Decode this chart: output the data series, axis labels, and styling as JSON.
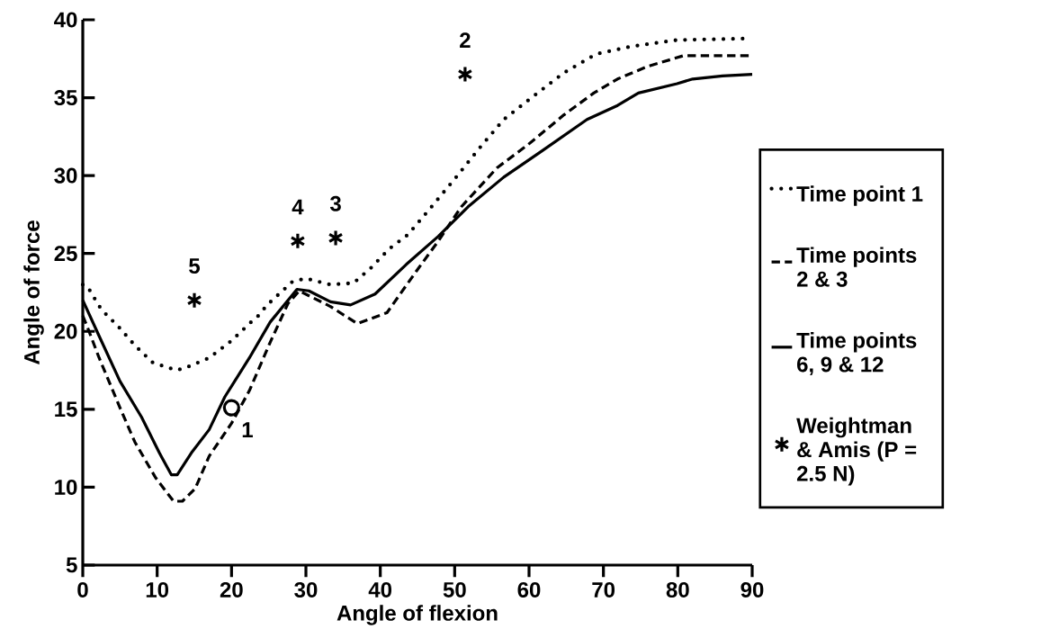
{
  "chart_data": {
    "type": "line",
    "xlabel": "Angle of flexion",
    "ylabel": "Angle of force",
    "xlim": [
      0,
      90
    ],
    "ylim": [
      5,
      40
    ],
    "xticks": [
      0,
      10,
      20,
      30,
      40,
      50,
      60,
      70,
      80,
      90
    ],
    "yticks": [
      5,
      10,
      15,
      20,
      25,
      30,
      35,
      40
    ],
    "legend": "right",
    "marker": "none",
    "series": [
      {
        "name": "Time point 1",
        "color": "#000000",
        "line_style": "dotted",
        "x": [
          0,
          0.6,
          1.6,
          2.5,
          4.8,
          7,
          9.4,
          12.6,
          14,
          17,
          20,
          22.4,
          23.6,
          24.8,
          28.2,
          30,
          33.3,
          36.4,
          38.8,
          41.2,
          43.7,
          46.9,
          50.2,
          53.4,
          56.6,
          60.6,
          64.7,
          69,
          73.9,
          79.9,
          90
        ],
        "values": [
          23.0,
          22.9,
          22.1,
          21.4,
          20.3,
          19.1,
          18.0,
          17.5,
          17.7,
          18.3,
          19.4,
          20.5,
          21.0,
          21.7,
          23.2,
          23.4,
          23.0,
          23.1,
          24.1,
          25.3,
          26.2,
          28.0,
          29.9,
          31.8,
          33.6,
          35.1,
          36.6,
          37.8,
          38.3,
          38.7,
          38.8
        ]
      },
      {
        "name": "Time points 2 & 3",
        "color": "#000000",
        "line_style": "dashed",
        "x": [
          0,
          0.6,
          2.2,
          5,
          7,
          9.8,
          12.2,
          13.4,
          15.1,
          17,
          20,
          22.4,
          25.2,
          27.6,
          29.1,
          33.3,
          36.9,
          40.9,
          44.9,
          47.8,
          50.9,
          55.7,
          59.9,
          64.7,
          68.7,
          71.9,
          75.9,
          80.8,
          90
        ],
        "values": [
          21.0,
          20.3,
          18.3,
          15.1,
          12.9,
          10.6,
          9.1,
          9.1,
          9.9,
          12.0,
          14.1,
          16.2,
          19.3,
          21.8,
          22.6,
          21.6,
          20.5,
          21.2,
          23.9,
          25.8,
          28.0,
          30.5,
          32.0,
          33.9,
          35.3,
          36.2,
          37.0,
          37.7,
          37.7
        ]
      },
      {
        "name": "Time points 6, 9 & 12",
        "color": "#000000",
        "line_style": "solid",
        "x": [
          0,
          2.2,
          5,
          7.9,
          10.3,
          11.9,
          12.7,
          14.6,
          17,
          19.1,
          22.4,
          25.2,
          28.8,
          30.4,
          33.3,
          36,
          39.3,
          43.5,
          47.8,
          51.8,
          56.6,
          61.8,
          67.8,
          71.9,
          74.7,
          79.9,
          82,
          86,
          90
        ],
        "values": [
          22.0,
          19.7,
          16.8,
          14.5,
          12.2,
          10.8,
          10.8,
          12.2,
          13.7,
          15.8,
          18.3,
          20.6,
          22.7,
          22.6,
          21.9,
          21.7,
          22.4,
          24.3,
          26.1,
          28.0,
          29.9,
          31.6,
          33.6,
          34.5,
          35.3,
          35.9,
          36.2,
          36.4,
          36.5
        ]
      },
      {
        "name": "Weightman & Amis (P = 2.5 N)",
        "type": "scatter",
        "marker": "cross",
        "color": "#000000",
        "x": [
          15,
          28.9,
          34,
          51.4
        ],
        "values": [
          22.0,
          25.8,
          26.0,
          36.5
        ]
      },
      {
        "type": "scatter",
        "marker": "circle",
        "color": "#000000",
        "x": [
          20
        ],
        "values": [
          15.1
        ]
      }
    ],
    "annotations": [
      {
        "text": "1",
        "x": 20,
        "y": 15.1
      },
      {
        "text": "2",
        "x": 51.4,
        "y": 36.5
      },
      {
        "text": "3",
        "x": 34,
        "y": 26.0
      },
      {
        "text": "4",
        "x": 28.9,
        "y": 25.8
      },
      {
        "text": "5",
        "x": 15,
        "y": 22.0
      }
    ]
  }
}
